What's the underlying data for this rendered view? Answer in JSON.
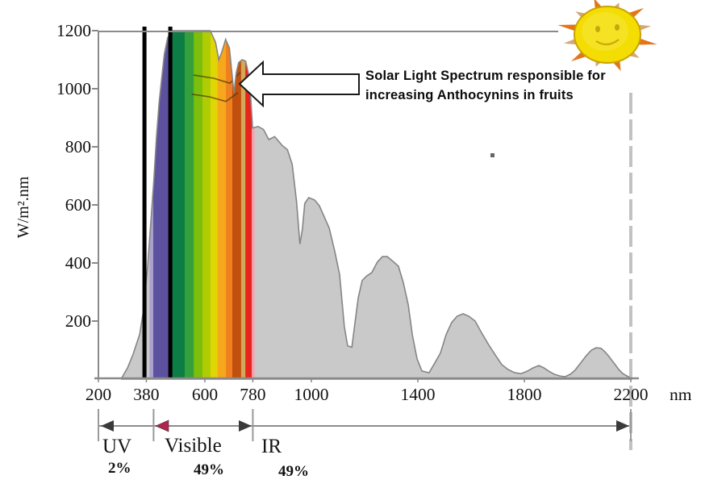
{
  "annotation": {
    "line1": "Solar Light Spectrum responsible for",
    "line2": "increasing Anthocynins in fruits"
  },
  "y_axis": {
    "label": "W/m².nm",
    "ticks": [
      200,
      400,
      600,
      800,
      1000,
      1200
    ]
  },
  "x_axis": {
    "ticks": [
      200,
      380,
      600,
      780,
      1000,
      1400,
      1800,
      2200
    ],
    "unit": "nm"
  },
  "bands": {
    "regions": [
      {
        "name": "UV",
        "percent": "2%",
        "from_nm": 200,
        "to_nm": 380
      },
      {
        "name": "Visible",
        "percent": "49%",
        "from_nm": 380,
        "to_nm": 780
      },
      {
        "name": "IR",
        "percent": "49%",
        "from_nm": 780,
        "to_nm": 2200
      }
    ],
    "dim_ticks_nm": [
      200,
      380,
      780,
      2200
    ]
  },
  "icons": {
    "sun": "smiling-sun-icon",
    "arrow": "block-arrow-left-icon"
  },
  "chart_data": {
    "type": "area",
    "title": "Solar irradiance spectrum with visible band highlighted",
    "ylabel": "W/m².nm",
    "xlabel_unit": "nm",
    "xlim": [
      200,
      2200
    ],
    "ylim": [
      0,
      1200
    ],
    "grid": false,
    "curve_fill": "#c9c9c9",
    "curve_stroke": "#858585",
    "curve": [
      [
        285,
        0
      ],
      [
        310,
        40
      ],
      [
        330,
        85
      ],
      [
        355,
        155
      ],
      [
        370,
        240
      ],
      [
        378,
        320
      ],
      [
        385,
        390
      ],
      [
        392,
        480
      ],
      [
        400,
        580
      ],
      [
        408,
        680
      ],
      [
        418,
        830
      ],
      [
        428,
        950
      ],
      [
        437,
        1030
      ],
      [
        448,
        1120
      ],
      [
        460,
        1175
      ],
      [
        470,
        1192
      ],
      [
        480,
        1200
      ],
      [
        620,
        1200
      ],
      [
        640,
        1160
      ],
      [
        652,
        1100
      ],
      [
        663,
        1125
      ],
      [
        678,
        1170
      ],
      [
        692,
        1140
      ],
      [
        703,
        1040
      ],
      [
        709,
        985
      ],
      [
        718,
        1055
      ],
      [
        727,
        1090
      ],
      [
        740,
        1100
      ],
      [
        753,
        1095
      ],
      [
        763,
        1055
      ],
      [
        772,
        970
      ],
      [
        779,
        865
      ],
      [
        800,
        870
      ],
      [
        820,
        860
      ],
      [
        840,
        825
      ],
      [
        862,
        835
      ],
      [
        890,
        805
      ],
      [
        910,
        790
      ],
      [
        928,
        740
      ],
      [
        944,
        615
      ],
      [
        957,
        465
      ],
      [
        966,
        515
      ],
      [
        975,
        605
      ],
      [
        990,
        625
      ],
      [
        1012,
        617
      ],
      [
        1030,
        597
      ],
      [
        1048,
        560
      ],
      [
        1067,
        520
      ],
      [
        1088,
        440
      ],
      [
        1106,
        360
      ],
      [
        1124,
        180
      ],
      [
        1136,
        115
      ],
      [
        1152,
        110
      ],
      [
        1164,
        195
      ],
      [
        1176,
        280
      ],
      [
        1191,
        340
      ],
      [
        1209,
        356
      ],
      [
        1227,
        367
      ],
      [
        1248,
        403
      ],
      [
        1267,
        422
      ],
      [
        1285,
        422
      ],
      [
        1306,
        406
      ],
      [
        1327,
        389
      ],
      [
        1345,
        333
      ],
      [
        1364,
        256
      ],
      [
        1379,
        153
      ],
      [
        1397,
        70
      ],
      [
        1415,
        28
      ],
      [
        1442,
        22
      ],
      [
        1464,
        56
      ],
      [
        1485,
        90
      ],
      [
        1506,
        153
      ],
      [
        1527,
        195
      ],
      [
        1548,
        217
      ],
      [
        1570,
        225
      ],
      [
        1591,
        217
      ],
      [
        1615,
        200
      ],
      [
        1639,
        160
      ],
      [
        1667,
        117
      ],
      [
        1691,
        83
      ],
      [
        1715,
        50
      ],
      [
        1739,
        33
      ],
      [
        1764,
        22
      ],
      [
        1788,
        19
      ],
      [
        1812,
        28
      ],
      [
        1833,
        39
      ],
      [
        1855,
        47
      ],
      [
        1873,
        39
      ],
      [
        1891,
        28
      ],
      [
        1912,
        17
      ],
      [
        1933,
        11
      ],
      [
        1952,
        8
      ],
      [
        1973,
        17
      ],
      [
        1991,
        31
      ],
      [
        2012,
        56
      ],
      [
        2033,
        81
      ],
      [
        2052,
        100
      ],
      [
        2070,
        108
      ],
      [
        2088,
        106
      ],
      [
        2103,
        94
      ],
      [
        2118,
        78
      ],
      [
        2136,
        56
      ],
      [
        2155,
        33
      ],
      [
        2170,
        19
      ],
      [
        2185,
        11
      ],
      [
        2197,
        5
      ],
      [
        2200,
        0
      ]
    ],
    "visible_band_nm": [
      380,
      780
    ],
    "boundary_lines_nm": [
      373,
      470
    ],
    "ir_boundary_dashed_nm": 2200,
    "spectrum_colors": [
      {
        "from_nm": 392,
        "to_nm": 406,
        "color": "#aaa2cd"
      },
      {
        "from_nm": 406,
        "to_nm": 464,
        "color": "#5c519e"
      },
      {
        "from_nm": 464,
        "to_nm": 479,
        "color": "#0a6b3c"
      },
      {
        "from_nm": 479,
        "to_nm": 524,
        "color": "#0c7d45"
      },
      {
        "from_nm": 524,
        "to_nm": 558,
        "color": "#33a03c"
      },
      {
        "from_nm": 558,
        "to_nm": 591,
        "color": "#7dbe0c"
      },
      {
        "from_nm": 591,
        "to_nm": 621,
        "color": "#b0cc02"
      },
      {
        "from_nm": 621,
        "to_nm": 648,
        "color": "#e0d505"
      },
      {
        "from_nm": 648,
        "to_nm": 679,
        "color": "#f5a81b"
      },
      {
        "from_nm": 679,
        "to_nm": 703,
        "color": "#ef7f1f"
      },
      {
        "from_nm": 703,
        "to_nm": 736,
        "color": "#c1500f"
      },
      {
        "from_nm": 736,
        "to_nm": 752,
        "color": "#d2a95a"
      },
      {
        "from_nm": 752,
        "to_nm": 776,
        "color": "#e8251d"
      },
      {
        "from_nm": 776,
        "to_nm": 785,
        "color": "#f2a3b3"
      }
    ],
    "absorption_marks": [
      [
        [
          557,
          1047
        ],
        [
          633,
          1036
        ],
        [
          694,
          1019
        ],
        [
          733,
          1056
        ]
      ],
      [
        [
          551,
          981
        ],
        [
          618,
          972
        ],
        [
          679,
          956
        ],
        [
          724,
          986
        ]
      ]
    ]
  }
}
